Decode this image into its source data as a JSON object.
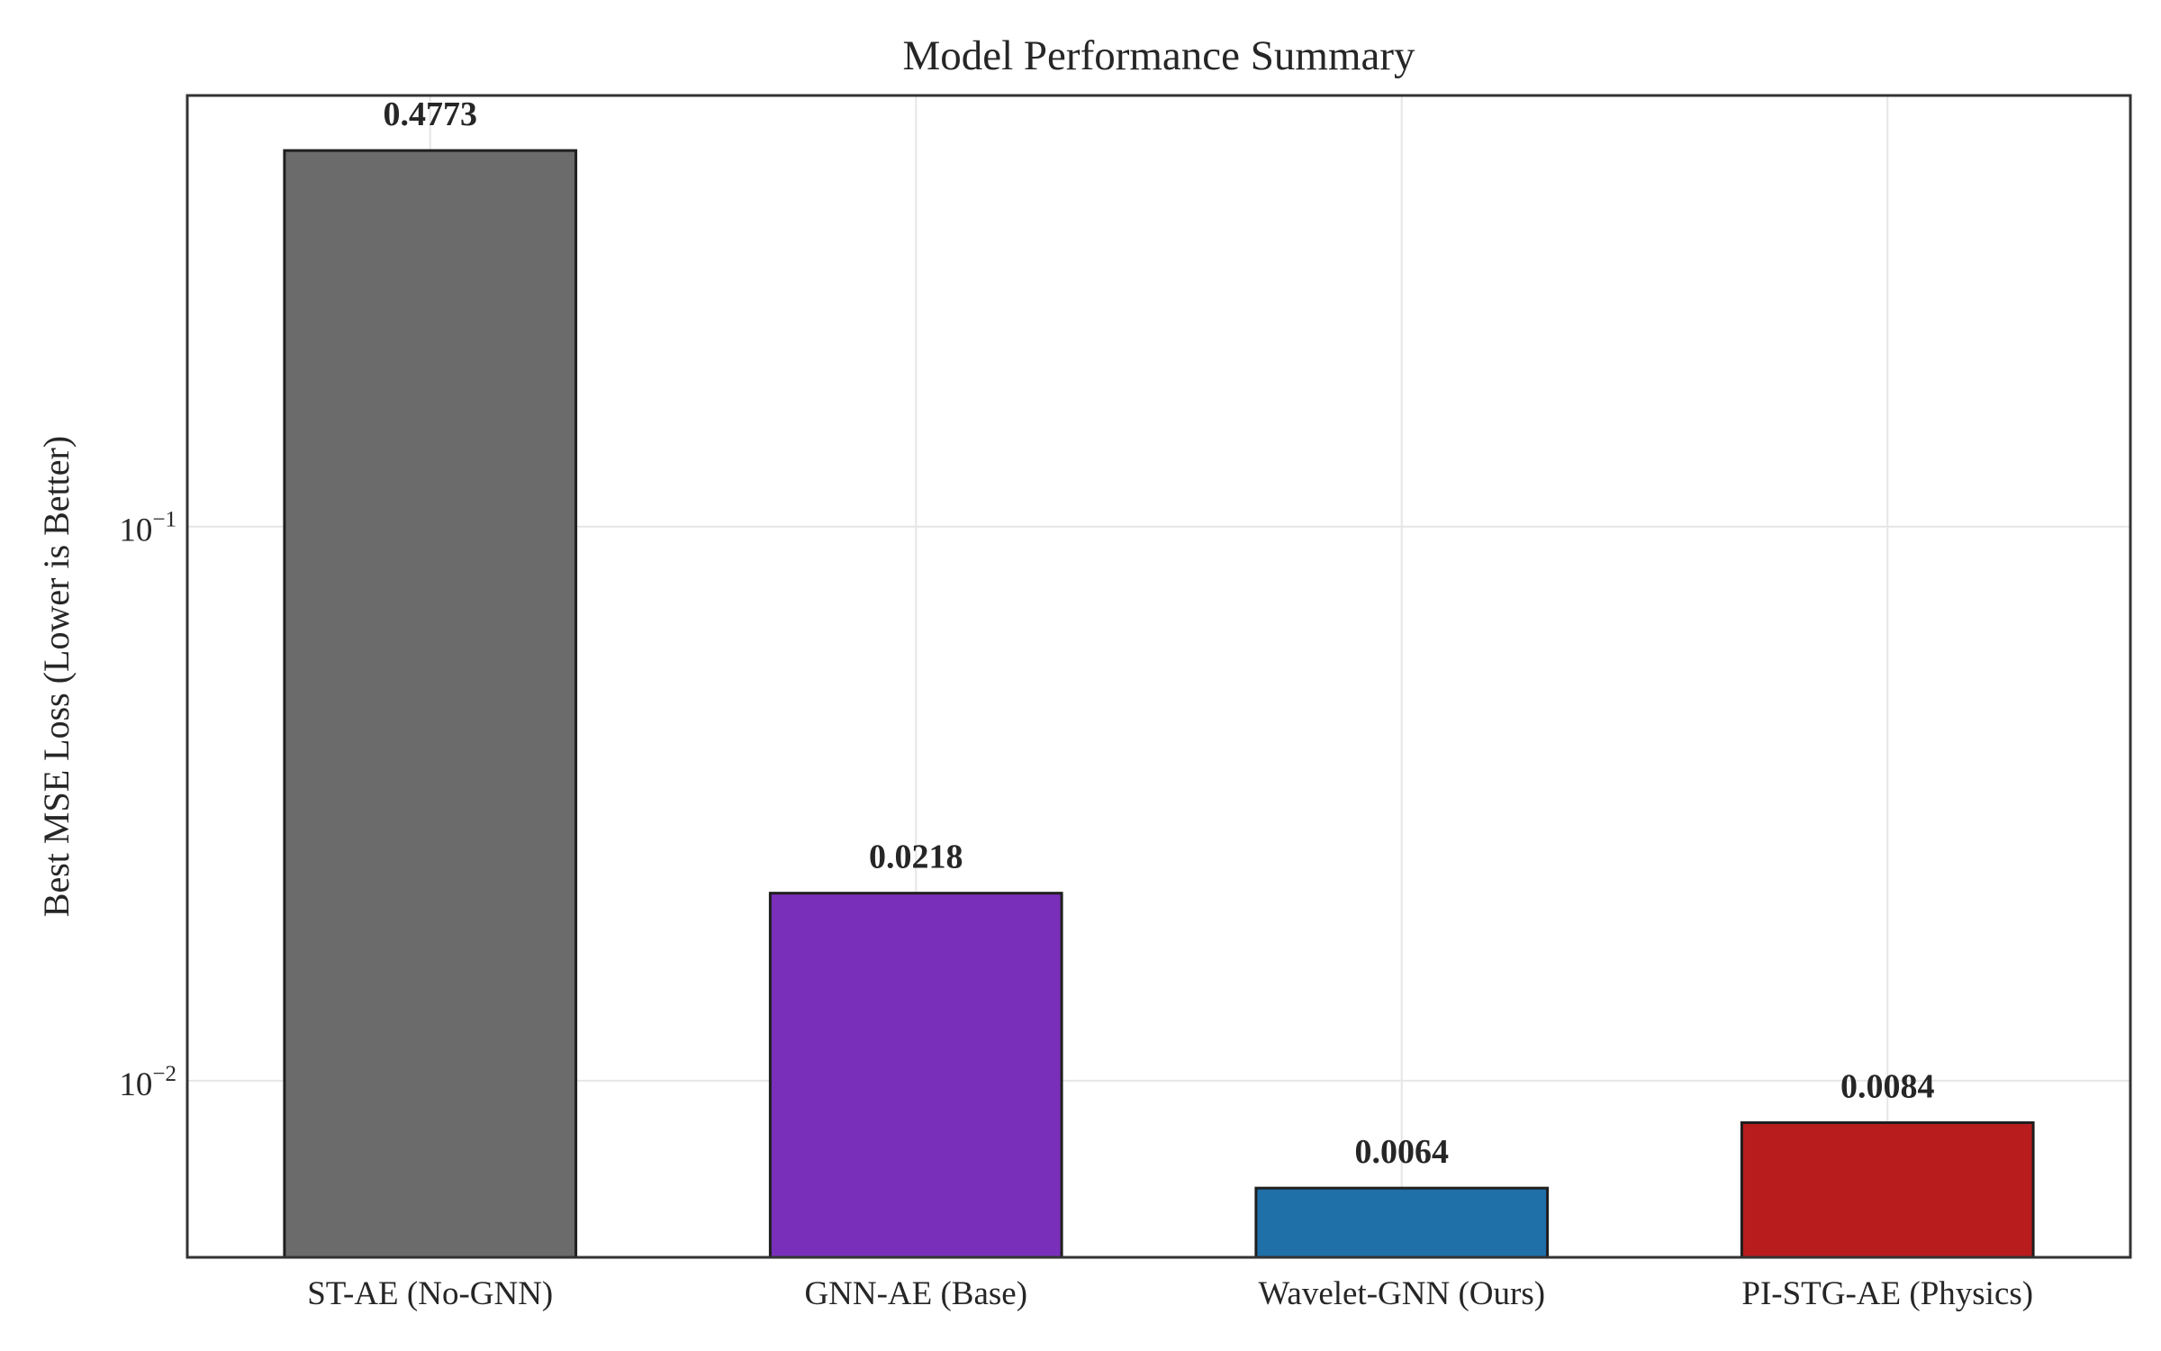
{
  "chart_data": {
    "type": "bar",
    "title": "Model Performance Summary",
    "xlabel": "",
    "ylabel": "Best MSE Loss (Lower is Better)",
    "yscale": "log",
    "ylim": [
      0.0048,
      0.6
    ],
    "grid": true,
    "categories": [
      "ST-AE (No-GNN)",
      "GNN-AE (Base)",
      "Wavelet-GNN (Ours)",
      "PI-STG-AE (Physics)"
    ],
    "values": [
      0.4773,
      0.0218,
      0.0064,
      0.0084
    ],
    "value_labels": [
      "0.4773",
      "0.0218",
      "0.0064",
      "0.0084"
    ],
    "colors": [
      "#6b6b6b",
      "#7a2fba",
      "#1f6fa8",
      "#b81c1c"
    ],
    "yticks": [
      {
        "value": 0.1,
        "base": "10",
        "exponent": "−1"
      },
      {
        "value": 0.01,
        "base": "10",
        "exponent": "−2"
      }
    ]
  }
}
